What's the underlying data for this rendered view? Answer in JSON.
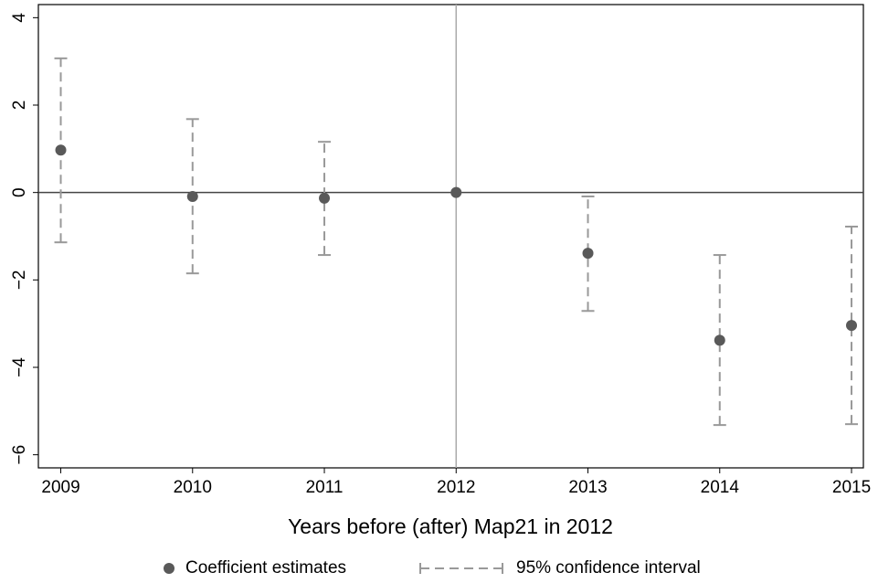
{
  "chart_data": {
    "type": "coefplot",
    "x_label": "Years before (after) Map21 in 2012",
    "x": [
      2009,
      2010,
      2011,
      2012,
      2013,
      2014,
      2015
    ],
    "xlim": [
      2008.83,
      2015.09
    ],
    "xticks": [
      2009,
      2010,
      2011,
      2012,
      2013,
      2014,
      2015
    ],
    "ylim": [
      -6.3,
      4.3
    ],
    "yticks": [
      {
        "value": -6,
        "label": "−6"
      },
      {
        "value": -4,
        "label": "−4"
      },
      {
        "value": -2,
        "label": "−2"
      },
      0,
      2,
      4
    ],
    "xline": 2012,
    "yline": 0,
    "series": [
      {
        "name": "Coefficient estimates",
        "color": "#595959",
        "values": [
          0.97,
          -0.09,
          -0.13,
          0,
          -1.39,
          -3.38,
          -3.04
        ]
      },
      {
        "name": "95% confidence interval",
        "color": "#999999",
        "lower": [
          -1.14,
          -1.85,
          -1.43,
          null,
          -2.71,
          -5.32,
          -5.3
        ],
        "upper": [
          3.07,
          1.68,
          1.16,
          null,
          -0.09,
          -1.43,
          -0.78
        ]
      }
    ],
    "legend": "bottom"
  }
}
